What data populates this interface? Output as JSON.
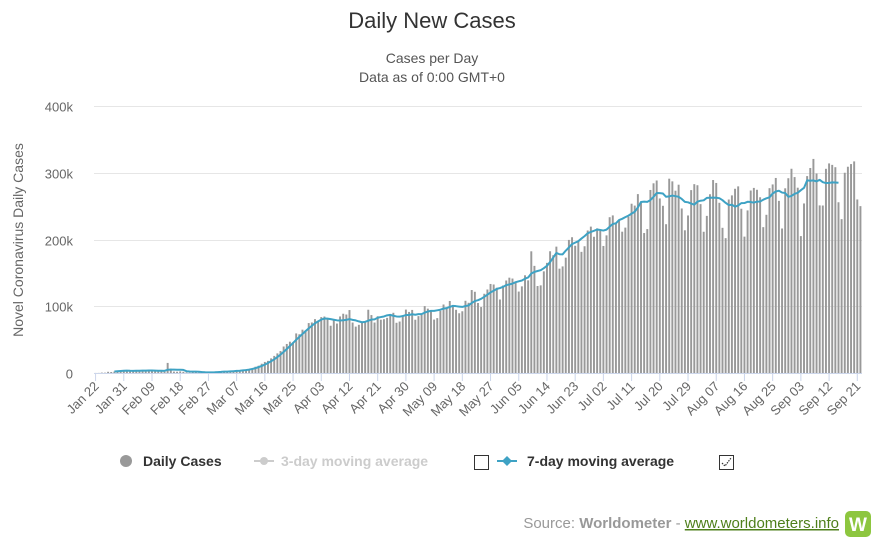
{
  "chart_data": {
    "type": "bar",
    "title": "Daily New Cases",
    "subtitle_line1": "Cases per Day",
    "subtitle_line2": "Data as of 0:00 GMT+0",
    "ylabel": "Novel Coronavirus Daily Cases",
    "xlabel": "",
    "ylim": [
      0,
      400000
    ],
    "y_ticks": [
      "0",
      "100k",
      "200k",
      "300k",
      "400k"
    ],
    "x_tick_labels": [
      "Jan 22",
      "Jan 31",
      "Feb 09",
      "Feb 18",
      "Feb 27",
      "Mar 07",
      "Mar 16",
      "Mar 25",
      "Apr 03",
      "Apr 12",
      "Apr 21",
      "Apr 30",
      "May 09",
      "May 18",
      "May 27",
      "Jun 05",
      "Jun 14",
      "Jun 23",
      "Jul 02",
      "Jul 11",
      "Jul 20",
      "Jul 29",
      "Aug 07",
      "Aug 16",
      "Aug 25",
      "Sep 03",
      "Sep 12",
      "Sep 21"
    ],
    "start_date": "Jan 22",
    "grid": true,
    "legend_position": "bottom",
    "series": [
      {
        "name": "Daily Cases",
        "type": "bar",
        "color": "#999999",
        "visible": true,
        "values": [
          100,
          150,
          600,
          500,
          1800,
          1500,
          2100,
          2800,
          3600,
          3800,
          3100,
          2600,
          4100,
          3700,
          3200,
          3800,
          3900,
          4000,
          3700,
          3200,
          2200,
          2600,
          2000,
          15100,
          6500,
          2100,
          1900,
          2400,
          1800,
          900,
          500,
          1100,
          900,
          500,
          400,
          600,
          1400,
          1100,
          1300,
          1800,
          1900,
          2300,
          2000,
          2100,
          2800,
          3400,
          3300,
          4300,
          5500,
          4600,
          6000,
          9400,
          10900,
          13900,
          16600,
          18200,
          21900,
          25600,
          29400,
          32900,
          39700,
          43500,
          46900,
          45800,
          59300,
          58000,
          64900,
          63800,
          74800,
          75700,
          80700,
          77600,
          83700,
          84600,
          80900,
          70800,
          78700,
          74100,
          84700,
          88800,
          87600,
          94300,
          75600,
          69500,
          72200,
          75600,
          77400,
          94800,
          86800,
          75600,
          85000,
          79800,
          80600,
          82600,
          86400,
          90200,
          75200,
          77100,
          86600,
          95000,
          91500,
          94500,
          79800,
          85200,
          87100,
          100200,
          96400,
          94300,
          80000,
          82200,
          93200,
          102600,
          98200,
          107900,
          101500,
          94700,
          89500,
          92500,
          108200,
          105200,
          124300,
          121700,
          104900,
          98800,
          118700,
          125100,
          133400,
          132600,
          127700,
          110100,
          131100,
          138600,
          142800,
          141500,
          135000,
          122000,
          129800,
          146400,
          138800,
          182300,
          160500,
          130300,
          131300,
          152300,
          165000,
          182400,
          176400,
          189300,
          156300,
          159700,
          172800,
          199400,
          203400,
          190600,
          197600,
          181500,
          189900,
          213500,
          219300,
          204100,
          216700,
          212800,
          190300,
          206200,
          233400,
          236100,
          224200,
          228800,
          211700,
          217800,
          234200,
          253600,
          250800,
          268000,
          255100,
          209700,
          215600,
          274200,
          284200,
          288400,
          261500,
          250500,
          222900,
          291100,
          287100,
          273100,
          282100,
          246500,
          213800,
          236000,
          274000,
          282900,
          281300,
          253000,
          211600,
          235400,
          267800,
          289100,
          284700,
          255000,
          217500,
          202000,
          259900,
          266100,
          276000,
          279600,
          246100,
          204300,
          243600,
          273400,
          277300,
          274500,
          263300,
          218500,
          237000,
          276900,
          282500,
          292200,
          257900,
          216500,
          276700,
          291800,
          306000,
          293500,
          277600,
          205100,
          254000,
          295000,
          307100,
          320700,
          298900,
          251100,
          250900,
          305900,
          314000,
          311800,
          308300,
          255800,
          230500,
          300000,
          309000,
          313000,
          317000,
          260000,
          250000
        ]
      },
      {
        "name": "3-day moving average",
        "type": "line",
        "color": "#cccccc",
        "visible": false,
        "values": []
      },
      {
        "name": "7-day moving average",
        "type": "line",
        "color": "#3ea2c4",
        "visible": true,
        "values": [
          null,
          null,
          null,
          null,
          null,
          null,
          2300,
          2600,
          3000,
          3300,
          3500,
          3300,
          3200,
          3400,
          3400,
          3500,
          3600,
          3700,
          3800,
          3600,
          3400,
          3400,
          3200,
          4800,
          5000,
          5000,
          4800,
          4800,
          4700,
          2700,
          2200,
          2100,
          2000,
          1800,
          1400,
          1100,
          1000,
          1000,
          1100,
          1400,
          1700,
          2100,
          2100,
          2400,
          2700,
          3100,
          3400,
          3900,
          4400,
          5100,
          6100,
          7200,
          8800,
          10500,
          12600,
          15000,
          17600,
          20500,
          23900,
          27500,
          31600,
          36000,
          40400,
          45000,
          49700,
          54100,
          58500,
          62700,
          66900,
          70800,
          74500,
          77400,
          80000,
          81600,
          81400,
          80700,
          79800,
          78900,
          78700,
          79000,
          79600,
          80800,
          79600,
          78800,
          77300,
          76000,
          76600,
          78300,
          80100,
          80400,
          82800,
          83800,
          84700,
          86400,
          87100,
          85800,
          84700,
          84500,
          85300,
          86800,
          86900,
          88000,
          87200,
          88200,
          88200,
          90500,
          92100,
          93100,
          93100,
          93900,
          94800,
          96500,
          97200,
          98900,
          100600,
          100100,
          99500,
          99000,
          100400,
          101200,
          104900,
          107800,
          109100,
          111100,
          114100,
          117400,
          120700,
          123200,
          126000,
          127200,
          129100,
          131700,
          132700,
          133900,
          136000,
          137400,
          138600,
          141300,
          143100,
          149100,
          151400,
          152800,
          154000,
          157000,
          160600,
          166200,
          173000,
          179800,
          177900,
          177800,
          183300,
          188000,
          193100,
          195300,
          197500,
          201400,
          205100,
          209300,
          211400,
          213000,
          215000,
          214200,
          213400,
          214800,
          219200,
          223300,
          224200,
          229100,
          231000,
          233500,
          235800,
          238800,
          241600,
          248000,
          256100,
          256700,
          256400,
          259000,
          263900,
          269600,
          269500,
          268900,
          264000,
          264600,
          265800,
          264900,
          264000,
          260700,
          256400,
          255700,
          253800,
          252200,
          256700,
          258100,
          258700,
          262400,
          262600,
          262800,
          262500,
          261900,
          258900,
          254900,
          251500,
          252000,
          249200,
          251000,
          254500,
          254600,
          256500,
          256100,
          255300,
          256700,
          257000,
          259600,
          261700,
          263200,
          268800,
          271900,
          273100,
          270300,
          269700,
          264000,
          265300,
          268400,
          270000,
          273900,
          277400,
          288500,
          288000,
          288500,
          287100,
          289400,
          285900,
          284600,
          284900,
          285600,
          285400,
          285000
        ]
      }
    ]
  },
  "source": {
    "label": "Source:",
    "name": "Worldometer",
    "separator": " - ",
    "link": "www.worldometers.info",
    "logo_letter": "W"
  }
}
